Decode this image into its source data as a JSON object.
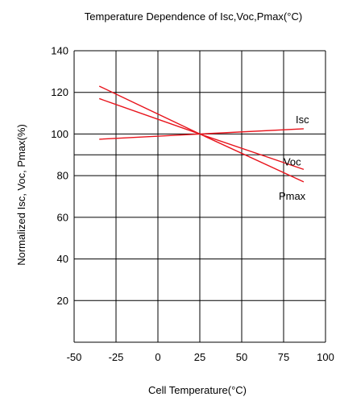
{
  "chart_data": {
    "type": "line",
    "title": "Temperature Dependence of Isc,Voc,Pmax(°C)",
    "xlabel": "Cell Temperature(°C)",
    "ylabel": "Normalized Isc, Voc, Pmax(%)",
    "xlim": [
      -50,
      100
    ],
    "ylim": [
      0,
      140
    ],
    "xticks": [
      "-50",
      "-25",
      "0",
      "25",
      "50",
      "75",
      "100"
    ],
    "yticks": [
      "20",
      "40",
      "60",
      "80",
      "100",
      "120",
      "140"
    ],
    "grid": true,
    "extra_gridline_y": 90,
    "line_color": "#e8141c",
    "series": [
      {
        "name": "Isc",
        "x": [
          -35,
          25,
          87
        ],
        "y": [
          97.5,
          100,
          102.5
        ]
      },
      {
        "name": "Voc",
        "x": [
          -35,
          25,
          87
        ],
        "y": [
          117,
          100,
          83
        ]
      },
      {
        "name": "Pmax",
        "x": [
          -35,
          25,
          87
        ],
        "y": [
          123,
          100,
          77
        ]
      }
    ]
  }
}
